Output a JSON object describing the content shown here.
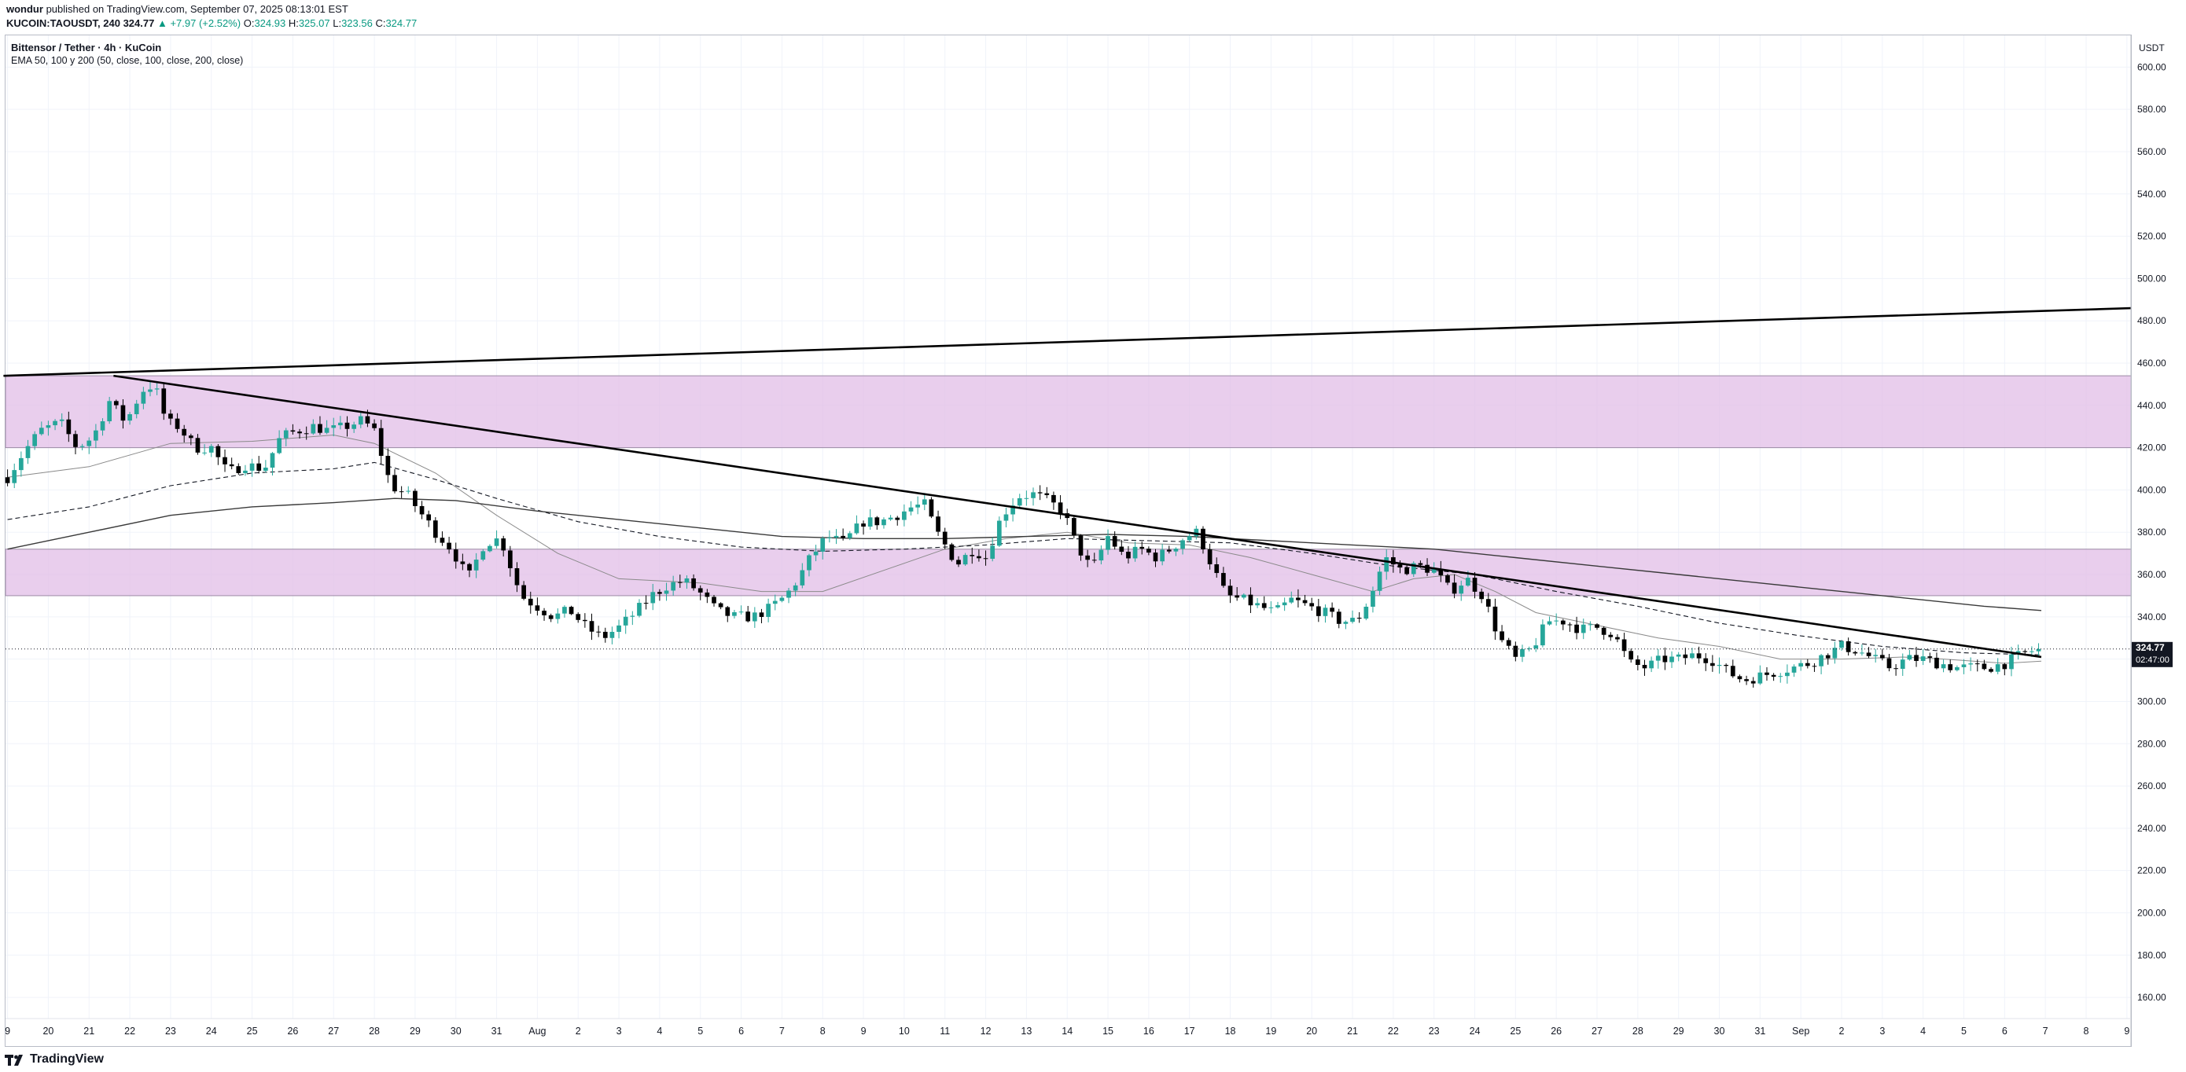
{
  "header": {
    "author": "wondur",
    "published_text": "published on TradingView.com, September 07, 2025 08:13:01 EST",
    "symbol": "KUCOIN:TAOUSDT, 240",
    "last": "324.77",
    "change": "▲ +7.97 (+2.52%)",
    "open_label": "O:",
    "open": "324.93",
    "high_label": "H:",
    "high": "325.07",
    "low_label": "L:",
    "low": "323.56",
    "close_label": "C:",
    "close": "324.77"
  },
  "legend": {
    "title": "Bittensor / Tether · 4h · KuCoin",
    "ema": "EMA 50, 100 y 200 (50, close, 100, close, 200, close)"
  },
  "axis": {
    "currency": "USDT"
  },
  "price_tag": {
    "price": "324.77",
    "countdown": "02:47:00"
  },
  "footer": {
    "brand": "TradingView"
  },
  "colors": {
    "up": "#26a69a",
    "down": "#000000",
    "zone": "#e1bee7",
    "accent": "#089981"
  },
  "chart_data": {
    "type": "candlestick",
    "ylim": [
      150,
      615
    ],
    "yticks": [
      160,
      180,
      200,
      220,
      240,
      260,
      280,
      300,
      320,
      340,
      360,
      380,
      400,
      420,
      440,
      460,
      480,
      500,
      520,
      540,
      560,
      580,
      600
    ],
    "x_tick_labels": [
      "9",
      "20",
      "21",
      "22",
      "23",
      "24",
      "25",
      "26",
      "27",
      "28",
      "29",
      "30",
      "31",
      "Aug",
      "2",
      "3",
      "4",
      "5",
      "6",
      "7",
      "8",
      "9",
      "10",
      "11",
      "12",
      "13",
      "14",
      "15",
      "16",
      "17",
      "18",
      "19",
      "20",
      "21",
      "22",
      "23",
      "24",
      "25",
      "26",
      "27",
      "28",
      "29",
      "30",
      "31",
      "Sep",
      "2",
      "3",
      "4",
      "5",
      "6",
      "7",
      "8",
      "9"
    ],
    "x_tick_days": [
      19,
      20,
      21,
      22,
      23,
      24,
      25,
      26,
      27,
      28,
      29,
      30,
      31,
      32,
      33,
      34,
      35,
      36,
      37,
      38,
      39,
      40,
      41,
      42,
      43,
      44,
      45,
      46,
      47,
      48,
      49,
      50,
      51,
      52,
      53,
      54,
      55,
      56,
      57,
      58,
      59,
      60,
      61,
      62,
      63,
      64,
      65,
      66,
      67,
      68,
      69,
      70,
      71
    ],
    "x_range_days": [
      18.95,
      71.1
    ],
    "resistance_zones": [
      [
        420,
        454
      ],
      [
        350,
        372
      ]
    ],
    "trendlines": [
      {
        "name": "upper",
        "points": [
          [
            18.9,
            454
          ],
          [
            71.1,
            486
          ]
        ]
      },
      {
        "name": "descending",
        "points": [
          [
            21.6,
            454
          ],
          [
            68.9,
            321
          ]
        ]
      }
    ],
    "last_price": 324.77,
    "close_path": [
      [
        19.0,
        406
      ],
      [
        19.4,
        418
      ],
      [
        19.8,
        428
      ],
      [
        20.3,
        432
      ],
      [
        20.7,
        420
      ],
      [
        21.1,
        425
      ],
      [
        21.5,
        442
      ],
      [
        21.9,
        432
      ],
      [
        22.3,
        447
      ],
      [
        22.6,
        450
      ],
      [
        22.9,
        432
      ],
      [
        23.2,
        430
      ],
      [
        23.6,
        420
      ],
      [
        24.0,
        420
      ],
      [
        24.4,
        408
      ],
      [
        24.8,
        412
      ],
      [
        25.3,
        410
      ],
      [
        25.7,
        425
      ],
      [
        26.1,
        428
      ],
      [
        26.5,
        430
      ],
      [
        26.9,
        428
      ],
      [
        27.3,
        430
      ],
      [
        27.7,
        433
      ],
      [
        28.0,
        428
      ],
      [
        28.4,
        402
      ],
      [
        28.8,
        398
      ],
      [
        29.1,
        390
      ],
      [
        29.5,
        380
      ],
      [
        29.9,
        372
      ],
      [
        30.3,
        358
      ],
      [
        30.7,
        375
      ],
      [
        31.1,
        377
      ],
      [
        31.6,
        350
      ],
      [
        31.9,
        346
      ],
      [
        32.4,
        340
      ],
      [
        32.8,
        343
      ],
      [
        33.2,
        335
      ],
      [
        33.6,
        330
      ],
      [
        34.0,
        335
      ],
      [
        34.4,
        342
      ],
      [
        34.8,
        350
      ],
      [
        35.2,
        355
      ],
      [
        35.6,
        357
      ],
      [
        35.9,
        353
      ],
      [
        36.4,
        343
      ],
      [
        36.8,
        340
      ],
      [
        37.3,
        340
      ],
      [
        37.7,
        344
      ],
      [
        38.1,
        350
      ],
      [
        38.4,
        358
      ],
      [
        38.7,
        368
      ],
      [
        39.1,
        378
      ],
      [
        39.5,
        375
      ],
      [
        40.0,
        385
      ],
      [
        40.4,
        385
      ],
      [
        40.8,
        388
      ],
      [
        41.2,
        392
      ],
      [
        41.5,
        393
      ],
      [
        41.8,
        380
      ],
      [
        42.3,
        365
      ],
      [
        42.7,
        372
      ],
      [
        43.0,
        368
      ],
      [
        43.4,
        388
      ],
      [
        43.8,
        397
      ],
      [
        44.2,
        398
      ],
      [
        44.5,
        395
      ],
      [
        44.9,
        390
      ],
      [
        45.2,
        375
      ],
      [
        45.6,
        362
      ],
      [
        46.0,
        378
      ],
      [
        46.4,
        368
      ],
      [
        46.8,
        372
      ],
      [
        47.2,
        368
      ],
      [
        47.6,
        373
      ],
      [
        47.9,
        378
      ],
      [
        48.2,
        380
      ],
      [
        48.6,
        362
      ],
      [
        48.9,
        350
      ],
      [
        49.3,
        348
      ],
      [
        49.7,
        345
      ],
      [
        50.1,
        342
      ],
      [
        50.5,
        348
      ],
      [
        50.9,
        345
      ],
      [
        51.3,
        342
      ],
      [
        51.7,
        338
      ],
      [
        52.1,
        338
      ],
      [
        52.4,
        348
      ],
      [
        52.8,
        368
      ],
      [
        53.2,
        362
      ],
      [
        53.6,
        364
      ],
      [
        54.0,
        362
      ],
      [
        54.4,
        352
      ],
      [
        54.8,
        358
      ],
      [
        55.2,
        350
      ],
      [
        55.6,
        330
      ],
      [
        56.0,
        320
      ],
      [
        56.4,
        325
      ],
      [
        56.8,
        338
      ],
      [
        57.2,
        338
      ],
      [
        57.6,
        334
      ],
      [
        58.0,
        335
      ],
      [
        58.4,
        332
      ],
      [
        58.8,
        318
      ],
      [
        59.2,
        316
      ],
      [
        59.6,
        320
      ],
      [
        60.0,
        320
      ],
      [
        60.4,
        322
      ],
      [
        60.8,
        320
      ],
      [
        61.2,
        314
      ],
      [
        61.6,
        310
      ],
      [
        62.0,
        312
      ],
      [
        62.4,
        314
      ],
      [
        62.8,
        316
      ],
      [
        63.2,
        318
      ],
      [
        63.6,
        322
      ],
      [
        64.0,
        326
      ],
      [
        64.4,
        324
      ],
      [
        64.8,
        320
      ],
      [
        65.2,
        316
      ],
      [
        65.6,
        320
      ],
      [
        66.0,
        320
      ],
      [
        66.4,
        318
      ],
      [
        66.8,
        316
      ],
      [
        67.2,
        316
      ],
      [
        67.6,
        316
      ],
      [
        68.0,
        318
      ],
      [
        68.4,
        322
      ],
      [
        68.8,
        324.77
      ]
    ],
    "ema_50": [
      [
        19.0,
        406
      ],
      [
        21.0,
        411
      ],
      [
        23.0,
        422
      ],
      [
        25.0,
        423
      ],
      [
        27.0,
        426
      ],
      [
        28.0,
        422
      ],
      [
        29.5,
        408
      ],
      [
        31.0,
        388
      ],
      [
        32.5,
        370
      ],
      [
        34.0,
        358
      ],
      [
        36.0,
        356
      ],
      [
        37.5,
        352
      ],
      [
        39.0,
        352
      ],
      [
        40.5,
        362
      ],
      [
        42.0,
        372
      ],
      [
        43.5,
        377
      ],
      [
        45.0,
        380
      ],
      [
        46.5,
        375
      ],
      [
        48.0,
        374
      ],
      [
        49.5,
        368
      ],
      [
        51.0,
        360
      ],
      [
        52.5,
        352
      ],
      [
        53.5,
        358
      ],
      [
        54.5,
        360
      ],
      [
        55.5,
        352
      ],
      [
        56.5,
        342
      ],
      [
        58.0,
        336
      ],
      [
        59.5,
        330
      ],
      [
        61.0,
        326
      ],
      [
        62.5,
        320
      ],
      [
        64.0,
        320
      ],
      [
        65.5,
        321
      ],
      [
        66.5,
        320
      ],
      [
        68.0,
        318
      ],
      [
        68.9,
        319
      ]
    ],
    "ema_100": [
      [
        19.0,
        386
      ],
      [
        21.0,
        392
      ],
      [
        23.0,
        402
      ],
      [
        25.0,
        408
      ],
      [
        27.0,
        410
      ],
      [
        28.0,
        413
      ],
      [
        29.5,
        405
      ],
      [
        31.0,
        396
      ],
      [
        33.0,
        385
      ],
      [
        35.0,
        378
      ],
      [
        37.0,
        373
      ],
      [
        39.0,
        371
      ],
      [
        41.0,
        372
      ],
      [
        43.0,
        374
      ],
      [
        45.0,
        377
      ],
      [
        47.0,
        376
      ],
      [
        49.0,
        375
      ],
      [
        51.0,
        370
      ],
      [
        53.0,
        364
      ],
      [
        55.0,
        360
      ],
      [
        57.0,
        352
      ],
      [
        59.0,
        345
      ],
      [
        61.0,
        337
      ],
      [
        63.0,
        331
      ],
      [
        65.0,
        326
      ],
      [
        67.0,
        323
      ],
      [
        68.9,
        322
      ]
    ],
    "ema_200": [
      [
        19.0,
        372
      ],
      [
        21.0,
        380
      ],
      [
        23.0,
        388
      ],
      [
        25.0,
        392
      ],
      [
        27.0,
        394
      ],
      [
        28.5,
        396
      ],
      [
        30.0,
        395
      ],
      [
        32.0,
        390
      ],
      [
        34.0,
        386
      ],
      [
        36.0,
        382
      ],
      [
        38.0,
        378
      ],
      [
        40.0,
        377
      ],
      [
        42.0,
        377
      ],
      [
        44.0,
        378
      ],
      [
        46.0,
        379
      ],
      [
        48.0,
        378
      ],
      [
        50.0,
        376
      ],
      [
        52.0,
        374
      ],
      [
        54.0,
        372
      ],
      [
        56.0,
        368
      ],
      [
        58.0,
        364
      ],
      [
        60.0,
        360
      ],
      [
        62.0,
        356
      ],
      [
        64.0,
        352
      ],
      [
        66.0,
        348
      ],
      [
        67.5,
        345
      ],
      [
        68.9,
        343
      ]
    ]
  }
}
